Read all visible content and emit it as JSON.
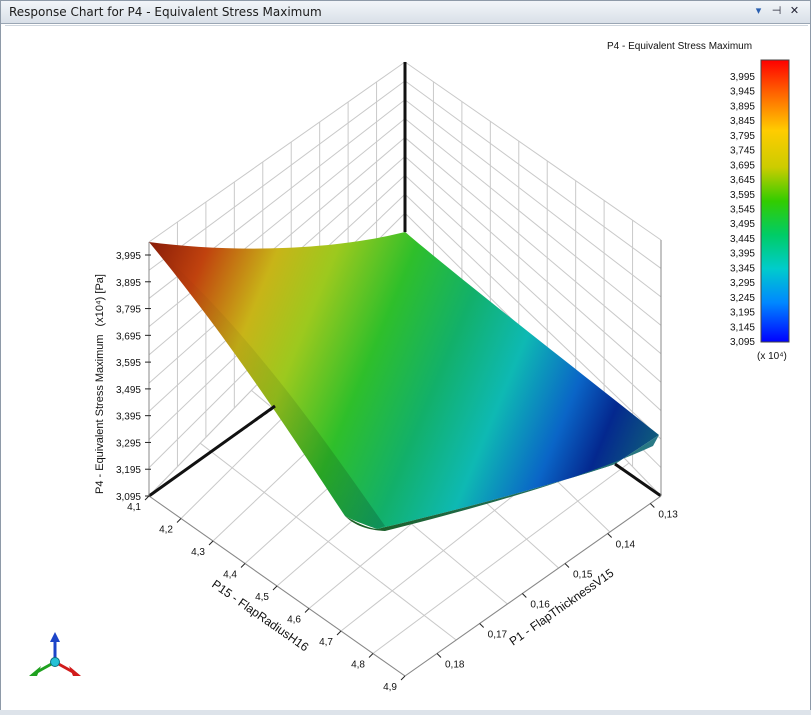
{
  "window": {
    "title": "Response Chart for P4 - Equivalent Stress Maximum",
    "buttons": {
      "dropdown": "▾",
      "pin": "⊣",
      "close": "✕"
    }
  },
  "chart_data": {
    "type": "surface3d",
    "zlabel": "P4 - Equivalent Stress Maximum",
    "zunit": "(x10⁴)  [Pa]",
    "ticks_z": [
      "3,995",
      "3,895",
      "3,795",
      "3,695",
      "3,595",
      "3,495",
      "3,395",
      "3,295",
      "3,195",
      "3,095"
    ],
    "ticks_x": [
      "4,1",
      "4,2",
      "4,3",
      "4,4",
      "4,5",
      "4,6",
      "4,7",
      "4,8",
      "4,9"
    ],
    "xlabel": "P15 - FlapRadiusH16",
    "ticks_y": [
      "0,13",
      "0,14",
      "0,15",
      "0,16",
      "0,17",
      "0,18"
    ],
    "ylabel": "P1 - FlapThicknessV15",
    "legend": {
      "title": "P4 - Equivalent Stress Maximum",
      "labels": [
        "3,995",
        "3,945",
        "3,895",
        "3,845",
        "3,795",
        "3,745",
        "3,695",
        "3,645",
        "3,595",
        "3,545",
        "3,495",
        "3,445",
        "3,395",
        "3,345",
        "3,295",
        "3,245",
        "3,195",
        "3,145",
        "3,095"
      ],
      "multiplier": "(x 10⁴)",
      "colors": [
        "#ff0000",
        "#ff6600",
        "#ffcc00",
        "#cccc00",
        "#66cc00",
        "#00cc00",
        "#00cccc",
        "#0099ff",
        "#0000ff"
      ]
    }
  }
}
